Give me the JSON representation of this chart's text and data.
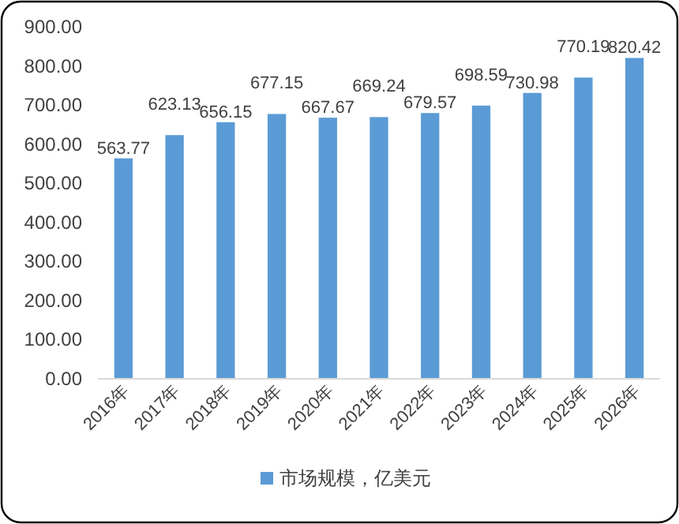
{
  "chart_data": {
    "type": "bar",
    "categories": [
      "2016年",
      "2017年",
      "2018年",
      "2019年",
      "2020年",
      "2021年",
      "2022年",
      "2023年",
      "2024年",
      "2025年",
      "2026年"
    ],
    "series": [
      {
        "name": "市场规模，亿美元",
        "color": "#5b9bd5",
        "values": [
          563.77,
          623.13,
          656.15,
          677.15,
          667.67,
          669.24,
          679.57,
          698.59,
          730.98,
          770.19,
          820.42
        ]
      }
    ],
    "ylim": [
      0,
      900
    ],
    "yticks": [
      {
        "value": 0,
        "label": "0.00"
      },
      {
        "value": 100,
        "label": "100.00"
      },
      {
        "value": 200,
        "label": "200.00"
      },
      {
        "value": 300,
        "label": "300.00"
      },
      {
        "value": 400,
        "label": "400.00"
      },
      {
        "value": 500,
        "label": "500.00"
      },
      {
        "value": 600,
        "label": "600.00"
      },
      {
        "value": 700,
        "label": "700.00"
      },
      {
        "value": 800,
        "label": "800.00"
      },
      {
        "value": 900,
        "label": "900.00"
      }
    ],
    "data_labels": true,
    "legend": "bottom",
    "grid": false
  }
}
